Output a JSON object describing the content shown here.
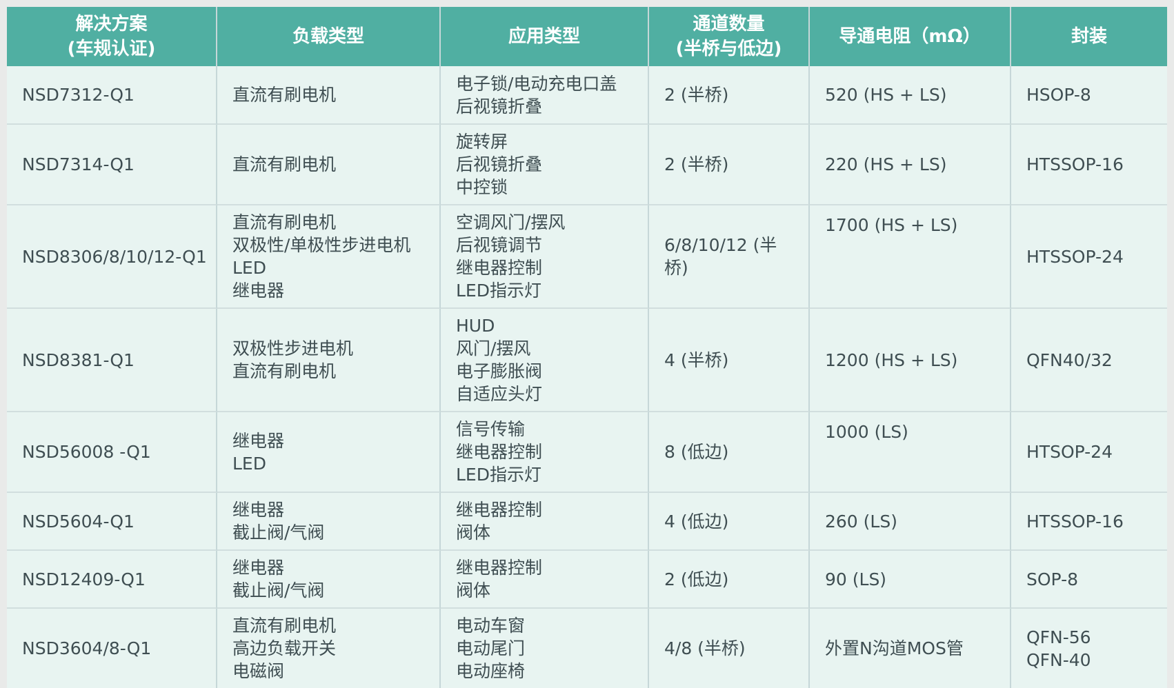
{
  "colors": {
    "page_background": "#E9EAE9",
    "header_background": "#50AFA2",
    "header_text": "#FFFFFF",
    "cell_background": "#E8F4F1",
    "cell_text": "#3F4E52",
    "divider_vertical": "#C6D7D8",
    "divider_horizontal": "#D1DEDE"
  },
  "chart_data": {
    "type": "table",
    "columns": [
      {
        "id": "solution",
        "lines": [
          "解决方案",
          "(车规认证)"
        ]
      },
      {
        "id": "load",
        "lines": [
          "负载类型"
        ]
      },
      {
        "id": "application",
        "lines": [
          "应用类型"
        ]
      },
      {
        "id": "channels",
        "lines": [
          "通道数量",
          "(半桥与低边)"
        ]
      },
      {
        "id": "resistance",
        "lines": [
          "导通电阻（mΩ）"
        ]
      },
      {
        "id": "package",
        "lines": [
          "封装"
        ]
      }
    ],
    "rows": [
      {
        "solution": [
          "NSD7312-Q1"
        ],
        "load": [
          "直流有刷电机"
        ],
        "application": [
          "电子锁/电动充电口盖",
          "后视镜折叠"
        ],
        "channels": [
          "2 (半桥)"
        ],
        "resistance": [
          "520 (HS + LS)"
        ],
        "package": [
          "HSOP-8"
        ],
        "resistance_valign": "middle"
      },
      {
        "solution": [
          "NSD7314-Q1"
        ],
        "load": [
          "直流有刷电机"
        ],
        "application": [
          "旋转屏",
          "后视镜折叠",
          "中控锁"
        ],
        "channels": [
          "2 (半桥)"
        ],
        "resistance": [
          "220 (HS + LS)"
        ],
        "package": [
          "HTSSOP-16"
        ],
        "resistance_valign": "middle"
      },
      {
        "solution": [
          "NSD8306/8/10/12-Q1"
        ],
        "load": [
          "直流有刷电机",
          "双极性/单极性步进电机",
          "LED",
          "继电器"
        ],
        "application": [
          "空调风门/摆风",
          "后视镜调节",
          "继电器控制",
          "LED指示灯"
        ],
        "channels": [
          "6/8/10/12 (半桥)"
        ],
        "resistance": [
          "1700 (HS + LS)"
        ],
        "package": [
          "HTSSOP-24"
        ],
        "resistance_valign": "top"
      },
      {
        "solution": [
          "NSD8381-Q1"
        ],
        "load": [
          "双极性步进电机",
          "直流有刷电机"
        ],
        "application": [
          "HUD",
          "风门/摆风",
          "电子膨胀阀",
          "自适应头灯"
        ],
        "channels": [
          "4 (半桥)"
        ],
        "resistance": [
          "1200 (HS + LS)"
        ],
        "package": [
          "QFN40/32"
        ],
        "resistance_valign": "middle"
      },
      {
        "solution": [
          "NSD56008 -Q1"
        ],
        "load": [
          "继电器",
          "LED"
        ],
        "application": [
          "信号传输",
          "继电器控制",
          "LED指示灯"
        ],
        "channels": [
          "8 (低边)"
        ],
        "resistance": [
          "1000 (LS)"
        ],
        "package": [
          "HTSOP-24"
        ],
        "resistance_valign": "top"
      },
      {
        "solution": [
          "NSD5604-Q1"
        ],
        "load": [
          "继电器",
          "截止阀/气阀"
        ],
        "application": [
          "继电器控制",
          "阀体"
        ],
        "channels": [
          "4 (低边)"
        ],
        "resistance": [
          "260 (LS)"
        ],
        "package": [
          "HTSSOP-16"
        ],
        "resistance_valign": "middle"
      },
      {
        "solution": [
          "NSD12409-Q1"
        ],
        "load": [
          "继电器",
          "截止阀/气阀"
        ],
        "application": [
          "继电器控制",
          "阀体"
        ],
        "channels": [
          "2 (低边)"
        ],
        "resistance": [
          "90 (LS)"
        ],
        "package": [
          "SOP-8"
        ],
        "resistance_valign": "middle"
      },
      {
        "solution": [
          "NSD3604/8-Q1"
        ],
        "load": [
          "直流有刷电机",
          "高边负载开关",
          "电磁阀"
        ],
        "application": [
          "电动车窗",
          "电动尾门",
          "电动座椅"
        ],
        "channels": [
          "4/8 (半桥)"
        ],
        "resistance": [
          "外置N沟道MOS管"
        ],
        "package": [
          "QFN-56",
          "QFN-40"
        ],
        "resistance_valign": "middle"
      }
    ]
  }
}
